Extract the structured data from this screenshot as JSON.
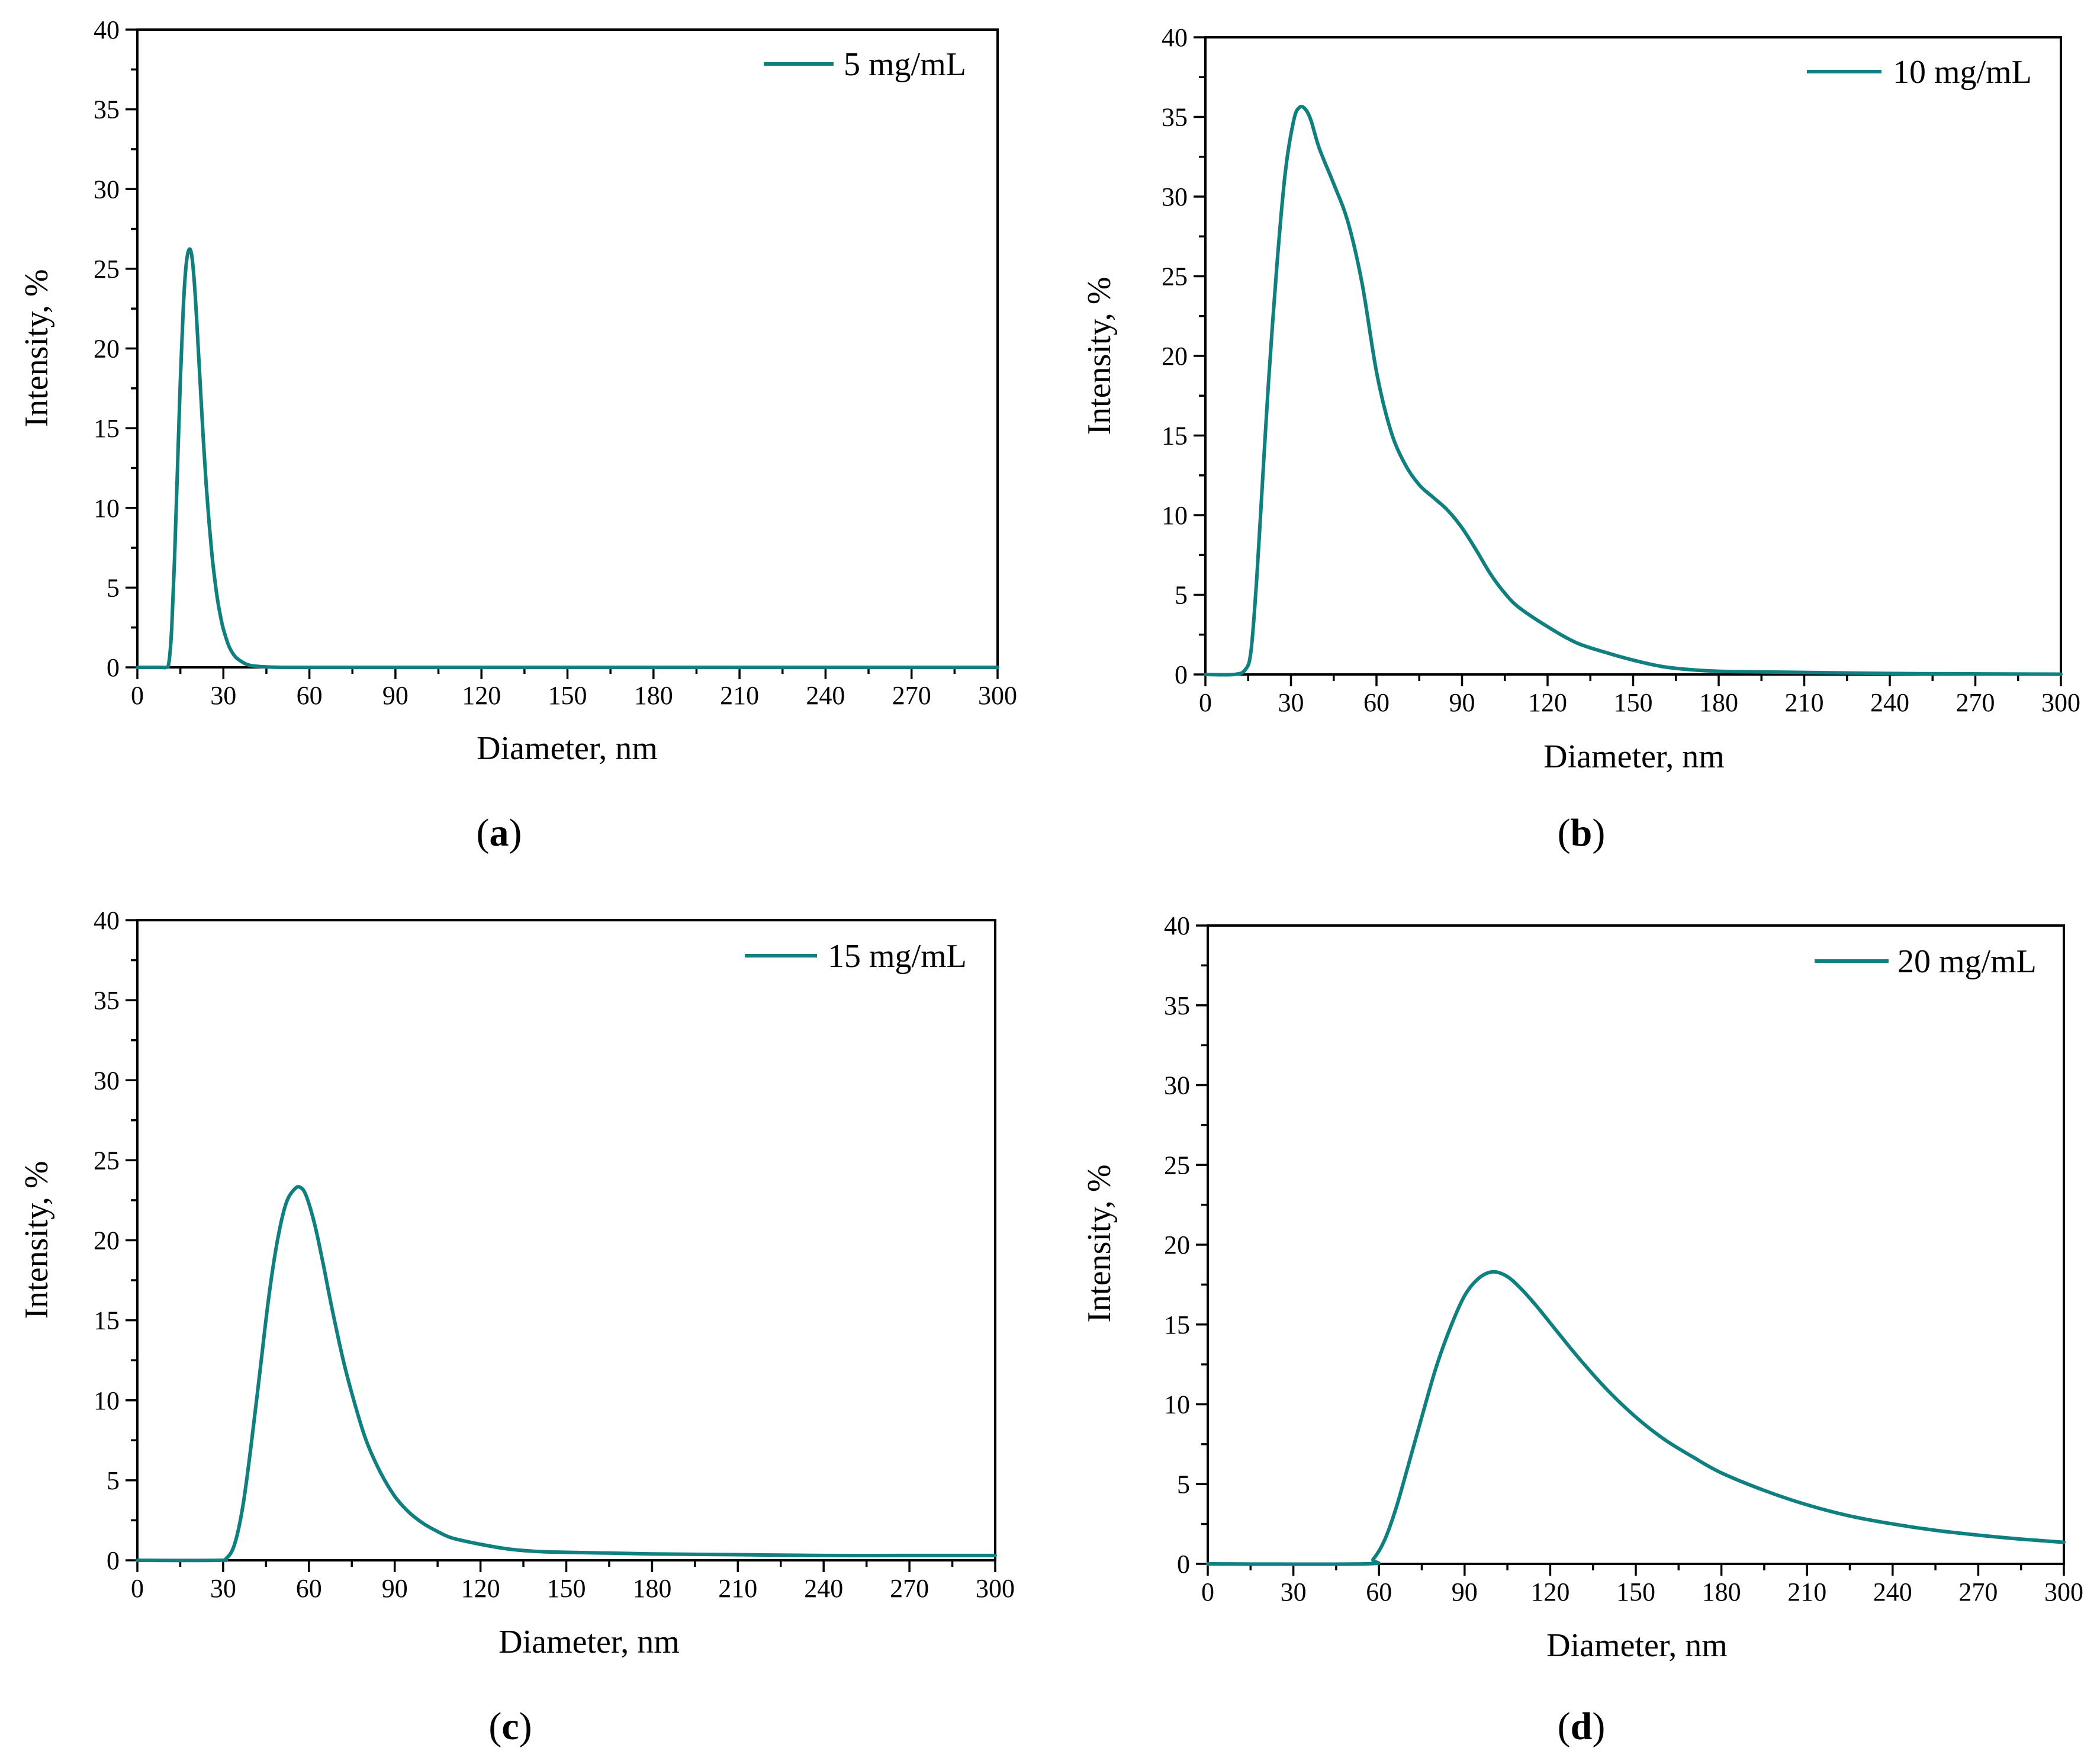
{
  "figure": {
    "line_color": "#0f7f7f"
  },
  "chart_data": [
    {
      "type": "line",
      "caption_letter": "a",
      "legend": "5 mg/mL",
      "xlabel": "Diameter, nm",
      "ylabel": "Intensity, %",
      "xlim": [
        0,
        300
      ],
      "ylim": [
        0,
        40
      ],
      "xticks": [
        0,
        30,
        60,
        90,
        120,
        150,
        180,
        210,
        240,
        270,
        300
      ],
      "yticks": [
        0,
        5,
        10,
        15,
        20,
        25,
        30,
        35,
        40
      ],
      "xtick_labels": [
        "0",
        "30",
        "60",
        "90",
        "120",
        "150",
        "180",
        "210",
        "240",
        "270",
        "300"
      ],
      "ytick_labels": [
        "0",
        "5",
        "10",
        "15",
        "20",
        "25",
        "30",
        "35",
        "40"
      ],
      "legend_position": "top-right",
      "series": [
        {
          "name": "5 mg/mL",
          "x": [
            0,
            8,
            10,
            11,
            12,
            13,
            14,
            15,
            16,
            17,
            18,
            19,
            20,
            21,
            22,
            23,
            24,
            25,
            26,
            27,
            28,
            29,
            30,
            32,
            34,
            36,
            38,
            40,
            43,
            46,
            50,
            55,
            60,
            80,
            120,
            200,
            300
          ],
          "y": [
            0,
            0,
            0,
            0.3,
            2.5,
            7,
            12.5,
            18,
            22.5,
            25.2,
            26.2,
            25.8,
            23.8,
            20.8,
            17.5,
            14.3,
            11.5,
            9.1,
            7.1,
            5.5,
            4.2,
            3.2,
            2.4,
            1.3,
            0.7,
            0.4,
            0.2,
            0.1,
            0.05,
            0.02,
            0,
            0,
            0,
            0,
            0,
            0,
            0
          ]
        }
      ]
    },
    {
      "type": "line",
      "caption_letter": "b",
      "legend": "10 mg/mL",
      "xlabel": "Diameter, nm",
      "ylabel": "Intensity, %",
      "xlim": [
        0,
        300
      ],
      "ylim": [
        0,
        40
      ],
      "xticks": [
        0,
        30,
        60,
        90,
        120,
        150,
        180,
        210,
        240,
        270,
        300
      ],
      "yticks": [
        0,
        5,
        10,
        15,
        20,
        25,
        30,
        35,
        40
      ],
      "xtick_labels": [
        "0",
        "30",
        "60",
        "90",
        "120",
        "150",
        "180",
        "210",
        "240",
        "270",
        "300"
      ],
      "ytick_labels": [
        "0",
        "5",
        "10",
        "15",
        "20",
        "25",
        "30",
        "35",
        "40"
      ],
      "legend_position": "top-right",
      "series": [
        {
          "name": "10 mg/mL",
          "x": [
            0,
            10,
            14,
            16,
            18,
            20,
            22,
            25,
            28,
            31,
            33,
            35,
            37,
            40,
            45,
            50,
            55,
            60,
            65,
            70,
            75,
            80,
            85,
            90,
            95,
            100,
            105,
            110,
            120,
            130,
            140,
            150,
            160,
            170,
            180,
            200,
            220,
            250,
            300
          ],
          "y": [
            0,
            0,
            0.3,
            1.5,
            6,
            12,
            18,
            25.5,
            31.5,
            34.8,
            35.6,
            35.5,
            34.8,
            33,
            30.8,
            28.4,
            24.5,
            19,
            15.3,
            13.2,
            11.9,
            11.1,
            10.3,
            9.2,
            7.8,
            6.3,
            5.1,
            4.2,
            3,
            2,
            1.4,
            0.9,
            0.5,
            0.3,
            0.2,
            0.15,
            0.1,
            0.05,
            0.02
          ]
        }
      ]
    },
    {
      "type": "line",
      "caption_letter": "c",
      "legend": "15 mg/mL",
      "xlabel": "Diameter, nm",
      "ylabel": "Intensity, %",
      "xlim": [
        0,
        300
      ],
      "ylim": [
        0,
        40
      ],
      "xticks": [
        0,
        30,
        60,
        90,
        120,
        150,
        180,
        210,
        240,
        270,
        300
      ],
      "yticks": [
        0,
        5,
        10,
        15,
        20,
        25,
        30,
        35,
        40
      ],
      "xtick_labels": [
        "0",
        "30",
        "60",
        "90",
        "120",
        "150",
        "180",
        "210",
        "240",
        "270",
        "300"
      ],
      "ytick_labels": [
        "0",
        "5",
        "10",
        "15",
        "20",
        "25",
        "30",
        "35",
        "40"
      ],
      "legend_position": "top-right",
      "series": [
        {
          "name": "15 mg/mL",
          "x": [
            0,
            28,
            31,
            34,
            37,
            40,
            43,
            46,
            49,
            52,
            55,
            57,
            59,
            62,
            65,
            68,
            72,
            76,
            80,
            85,
            90,
            95,
            100,
            105,
            110,
            120,
            130,
            140,
            150,
            165,
            180,
            210,
            240,
            270,
            300
          ],
          "y": [
            0,
            0,
            0.1,
            1,
            3.5,
            7.5,
            12,
            16.5,
            20,
            22.3,
            23.2,
            23.3,
            22.8,
            21,
            18.5,
            15.8,
            12.5,
            9.8,
            7.5,
            5.5,
            4,
            3,
            2.3,
            1.8,
            1.4,
            1,
            0.7,
            0.55,
            0.5,
            0.45,
            0.4,
            0.35,
            0.3,
            0.3,
            0.3
          ]
        }
      ]
    },
    {
      "type": "line",
      "caption_letter": "d",
      "legend": "20 mg/mL",
      "xlabel": "Diameter, nm",
      "ylabel": "Intensity, %",
      "xlim": [
        0,
        300
      ],
      "ylim": [
        0,
        40
      ],
      "xticks": [
        0,
        30,
        60,
        90,
        120,
        150,
        180,
        210,
        240,
        270,
        300
      ],
      "yticks": [
        0,
        5,
        10,
        15,
        20,
        25,
        30,
        35,
        40
      ],
      "xtick_labels": [
        "0",
        "30",
        "60",
        "90",
        "120",
        "150",
        "180",
        "210",
        "240",
        "270",
        "300"
      ],
      "ytick_labels": [
        "0",
        "5",
        "10",
        "15",
        "20",
        "25",
        "30",
        "35",
        "40"
      ],
      "legend_position": "top-right",
      "series": [
        {
          "name": "20 mg/mL",
          "x": [
            0,
            55,
            58,
            62,
            66,
            70,
            75,
            80,
            85,
            90,
            95,
            100,
            105,
            110,
            115,
            120,
            130,
            140,
            150,
            160,
            170,
            180,
            195,
            210,
            225,
            240,
            255,
            270,
            285,
            300
          ],
          "y": [
            0,
            0,
            0.3,
            1.5,
            3.5,
            6,
            9.2,
            12.3,
            14.8,
            16.8,
            17.9,
            18.3,
            18,
            17.2,
            16.2,
            15.1,
            12.9,
            10.9,
            9.2,
            7.8,
            6.7,
            5.7,
            4.6,
            3.7,
            3,
            2.5,
            2.1,
            1.8,
            1.55,
            1.35
          ]
        }
      ]
    }
  ]
}
